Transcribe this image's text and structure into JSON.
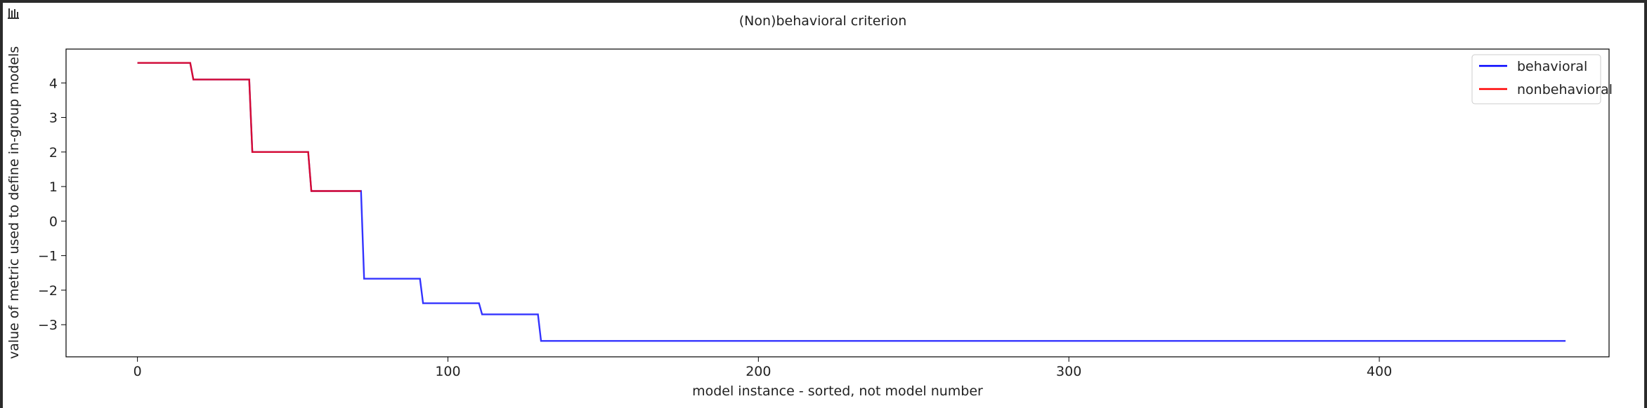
{
  "app": {
    "icon": "bar-chart-icon"
  },
  "chart_data": {
    "type": "line",
    "title": "(Non)behavioral criterion",
    "xlabel": "model instance - sorted, not model number",
    "ylabel": "value of metric used to define in-group models",
    "xlim": [
      -23,
      474
    ],
    "ylim": [
      -3.93,
      4.98
    ],
    "x_ticks": [
      0,
      100,
      200,
      300,
      400
    ],
    "y_ticks": [
      -3,
      -2,
      -1,
      0,
      1,
      2,
      3,
      4
    ],
    "grid": false,
    "legend_position": "top-right",
    "series": [
      {
        "name": "behavioral",
        "color": "#0000ff",
        "points": [
          [
            0,
            4.58
          ],
          [
            17,
            4.58
          ],
          [
            18,
            4.1
          ],
          [
            36,
            4.1
          ],
          [
            37,
            2.0
          ],
          [
            55,
            2.0
          ],
          [
            56,
            0.87
          ],
          [
            72,
            0.87
          ],
          [
            73,
            -1.67
          ],
          [
            91,
            -1.67
          ],
          [
            92,
            -2.38
          ],
          [
            110,
            -2.38
          ],
          [
            111,
            -2.7
          ],
          [
            129,
            -2.7
          ],
          [
            130,
            -3.47
          ],
          [
            460,
            -3.47
          ]
        ]
      },
      {
        "name": "nonbehavioral",
        "color": "#ff0000",
        "points": [
          [
            0,
            4.58
          ],
          [
            17,
            4.58
          ],
          [
            18,
            4.1
          ],
          [
            36,
            4.1
          ],
          [
            37,
            2.0
          ],
          [
            55,
            2.0
          ],
          [
            56,
            0.87
          ],
          [
            72,
            0.87
          ]
        ]
      }
    ]
  }
}
